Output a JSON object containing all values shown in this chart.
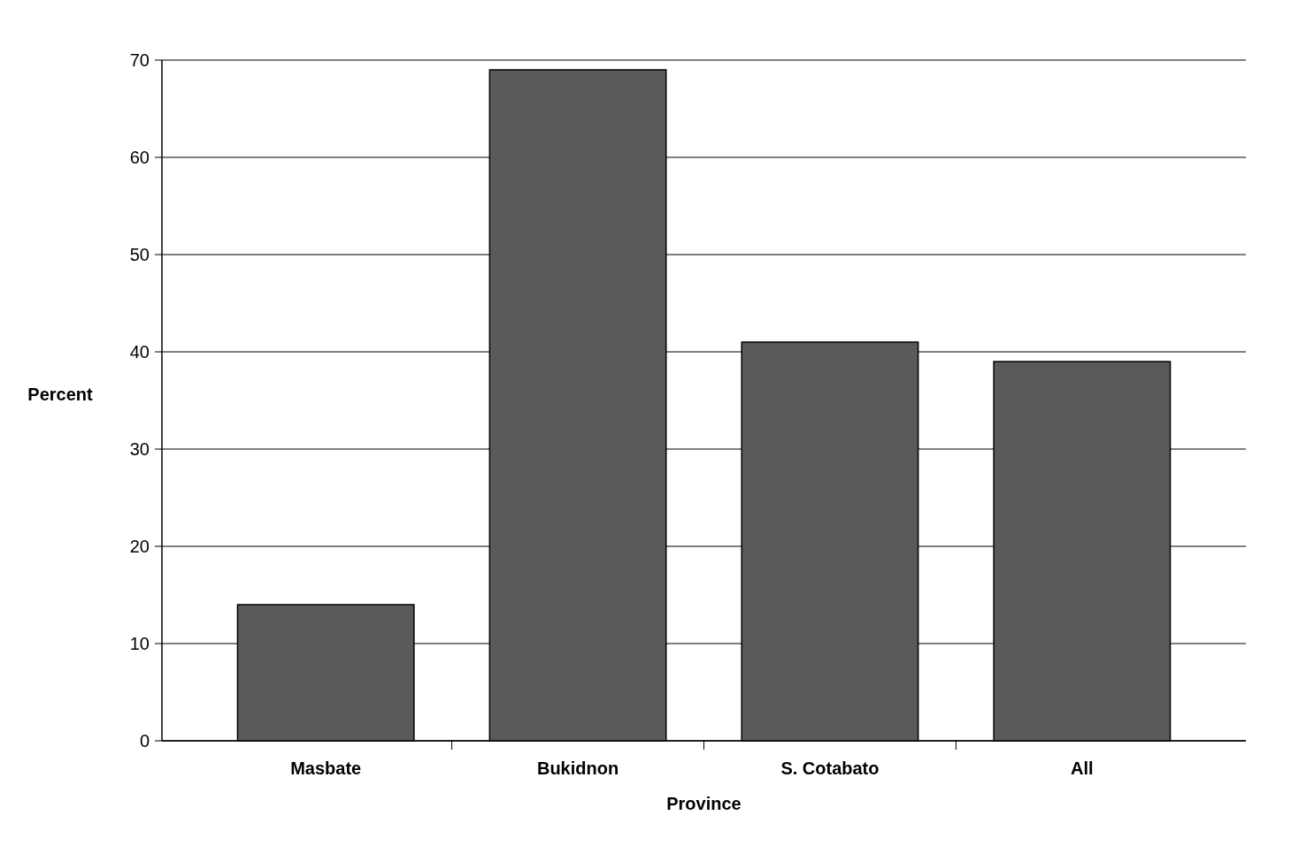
{
  "chart_data": {
    "type": "bar",
    "xlabel": "Province",
    "ylabel": "Percent",
    "categories": [
      "Masbate",
      "Bukidnon",
      "S. Cotabato",
      "All"
    ],
    "values": [
      14,
      69,
      41,
      39
    ],
    "color": "#5a5a5a",
    "ylim": [
      0,
      70
    ],
    "yticks": [
      0,
      10,
      20,
      30,
      40,
      50,
      60,
      70
    ],
    "grid": "y"
  }
}
